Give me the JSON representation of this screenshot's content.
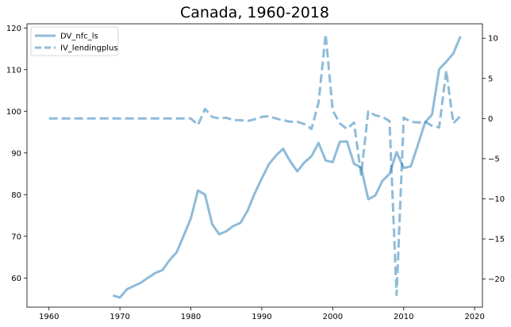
{
  "chart_data": {
    "type": "line",
    "title": "Canada, 1960-2018",
    "xlabel": "",
    "ylabel": "",
    "grid": false,
    "legend_position": "top-left",
    "xlim": [
      1956.9,
      2021.1
    ],
    "ylim_left": [
      53,
      121
    ],
    "ylim_right": [
      -23.5,
      11.8
    ],
    "x_ticks": [
      1960,
      1970,
      1980,
      1990,
      2000,
      2010,
      2020
    ],
    "y_ticks_left": [
      60,
      70,
      80,
      90,
      100,
      110,
      120
    ],
    "y_ticks_right": [
      10,
      5,
      0,
      -5,
      -10,
      -15,
      -20
    ],
    "series": [
      {
        "name": "DV_nfc_ls",
        "axis": "left",
        "style": "solid",
        "color": "#1f77b4",
        "points": [
          [
            1969,
            55.8
          ],
          [
            1970,
            55.3
          ],
          [
            1971,
            57.3
          ],
          [
            1972,
            58.1
          ],
          [
            1973,
            58.9
          ],
          [
            1974,
            60.1
          ],
          [
            1975,
            61.2
          ],
          [
            1976,
            61.9
          ],
          [
            1977,
            64.3
          ],
          [
            1978,
            66.2
          ],
          [
            1979,
            70.2
          ],
          [
            1980,
            74.3
          ],
          [
            1981,
            81.0
          ],
          [
            1982,
            80.0
          ],
          [
            1983,
            72.9
          ],
          [
            1984,
            70.5
          ],
          [
            1985,
            71.2
          ],
          [
            1986,
            72.5
          ],
          [
            1987,
            73.2
          ],
          [
            1988,
            76.2
          ],
          [
            1989,
            80.3
          ],
          [
            1990,
            83.9
          ],
          [
            1991,
            87.3
          ],
          [
            1992,
            89.4
          ],
          [
            1993,
            91.0
          ],
          [
            1994,
            88.0
          ],
          [
            1995,
            85.6
          ],
          [
            1996,
            87.7
          ],
          [
            1997,
            89.2
          ],
          [
            1998,
            92.4
          ],
          [
            1999,
            88.2
          ],
          [
            2000,
            87.8
          ],
          [
            2001,
            92.7
          ],
          [
            2002,
            92.8
          ],
          [
            2003,
            87.4
          ],
          [
            2004,
            86.5
          ],
          [
            2005,
            78.9
          ],
          [
            2006,
            79.8
          ],
          [
            2007,
            83.3
          ],
          [
            2008,
            85.0
          ],
          [
            2009,
            90.2
          ],
          [
            2010,
            86.4
          ],
          [
            2011,
            86.8
          ],
          [
            2012,
            91.9
          ],
          [
            2013,
            97.3
          ],
          [
            2014,
            99.2
          ],
          [
            2015,
            110.1
          ],
          [
            2016,
            111.9
          ],
          [
            2017,
            113.9
          ],
          [
            2018,
            118.0
          ]
        ]
      },
      {
        "name": "IV_lendingplus",
        "axis": "right",
        "style": "dashed",
        "color": "#1f77b4",
        "points": [
          [
            1960,
            0
          ],
          [
            1961,
            0
          ],
          [
            1962,
            0
          ],
          [
            1963,
            0
          ],
          [
            1964,
            0
          ],
          [
            1965,
            0
          ],
          [
            1966,
            0
          ],
          [
            1967,
            0
          ],
          [
            1968,
            0
          ],
          [
            1969,
            0
          ],
          [
            1970,
            0
          ],
          [
            1971,
            0
          ],
          [
            1972,
            0
          ],
          [
            1973,
            0
          ],
          [
            1974,
            0
          ],
          [
            1975,
            0
          ],
          [
            1976,
            0
          ],
          [
            1977,
            0
          ],
          [
            1978,
            0
          ],
          [
            1979,
            0
          ],
          [
            1980,
            0
          ],
          [
            1981,
            -0.8
          ],
          [
            1982,
            1.2
          ],
          [
            1983,
            0.2
          ],
          [
            1984,
            0.0
          ],
          [
            1985,
            0.1
          ],
          [
            1986,
            -0.2
          ],
          [
            1987,
            -0.2
          ],
          [
            1988,
            -0.3
          ],
          [
            1989,
            -0.1
          ],
          [
            1990,
            0.2
          ],
          [
            1991,
            0.3
          ],
          [
            1992,
            0.0
          ],
          [
            1993,
            -0.2
          ],
          [
            1994,
            -0.4
          ],
          [
            1995,
            -0.4
          ],
          [
            1996,
            -0.7
          ],
          [
            1997,
            -1.3
          ],
          [
            1998,
            2.0
          ],
          [
            1999,
            10.5
          ],
          [
            2000,
            1.0
          ],
          [
            2001,
            -0.6
          ],
          [
            2002,
            -1.3
          ],
          [
            2003,
            -0.5
          ],
          [
            2004,
            -7.0
          ],
          [
            2005,
            0.9
          ],
          [
            2006,
            0.4
          ],
          [
            2007,
            0.2
          ],
          [
            2008,
            -0.3
          ],
          [
            2009,
            -22.0
          ],
          [
            2010,
            0.1
          ],
          [
            2011,
            -0.4
          ],
          [
            2012,
            -0.5
          ],
          [
            2013,
            -0.4
          ],
          [
            2014,
            -0.9
          ],
          [
            2015,
            -1.1
          ],
          [
            2016,
            6.0
          ],
          [
            2017,
            -0.6
          ],
          [
            2018,
            0.3
          ]
        ]
      }
    ]
  }
}
